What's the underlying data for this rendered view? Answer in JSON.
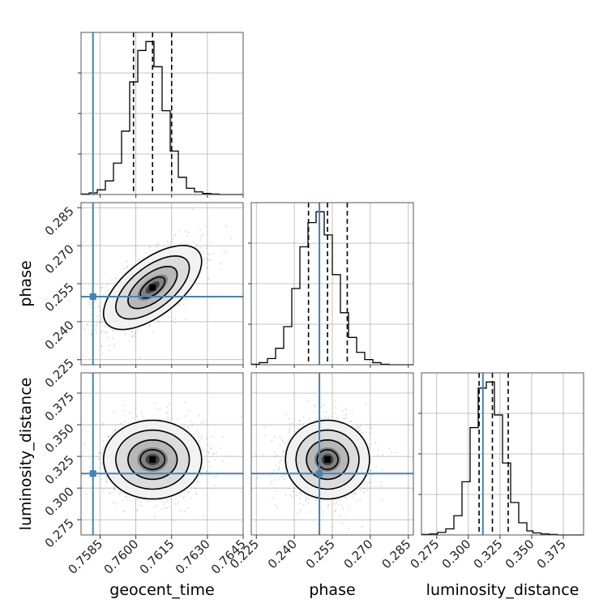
{
  "chart_data": {
    "type": "corner",
    "parameters": [
      "geocent_time",
      "phase",
      "luminosity_distance"
    ],
    "axis_labels": {
      "geocent_time": "geocent_time",
      "phase": "phase",
      "luminosity_distance": "luminosity_distance"
    },
    "ranges": {
      "geocent_time": [
        0.7577,
        0.7645
      ],
      "phase": [
        0.223,
        0.287
      ],
      "luminosity_distance": [
        0.263,
        0.391
      ]
    },
    "ticks": {
      "geocent_time": [
        "0.7585",
        "0.7600",
        "0.7615",
        "0.7630",
        "0.7645"
      ],
      "phase": [
        "0.225",
        "0.240",
        "0.255",
        "0.270",
        "0.285"
      ],
      "luminosity_distance": [
        "0.275",
        "0.300",
        "0.325",
        "0.350",
        "0.375"
      ]
    },
    "truths": {
      "geocent_time": 0.7582,
      "phase": 0.2499,
      "luminosity_distance": 0.3115
    },
    "truth_color": "#4682b4",
    "quantiles": {
      "geocent_time": [
        0.7599,
        0.7607,
        0.7615
      ],
      "phase": [
        0.2456,
        0.2531,
        0.2609
      ],
      "luminosity_distance": [
        0.3085,
        0.319,
        0.3315
      ]
    },
    "histograms": {
      "geocent_time": {
        "edges": [
          0.7577,
          0.75804,
          0.75838,
          0.75872,
          0.75906,
          0.7594,
          0.75974,
          0.76008,
          0.76042,
          0.76076,
          0.7611,
          0.76144,
          0.76178,
          0.76212,
          0.76246,
          0.7628,
          0.76314,
          0.76348,
          0.76382,
          0.76416,
          0.7645
        ],
        "counts": [
          1,
          3,
          9,
          26,
          60,
          121,
          215,
          275,
          292,
          244,
          160,
          83,
          33,
          12,
          5,
          2,
          1,
          0,
          0,
          0
        ]
      },
      "phase": {
        "edges": [
          0.223,
          0.2262,
          0.2294,
          0.2326,
          0.2358,
          0.239,
          0.2422,
          0.2454,
          0.2486,
          0.2518,
          0.255,
          0.2582,
          0.2614,
          0.2646,
          0.2678,
          0.271,
          0.2742,
          0.2774,
          0.2806,
          0.2838,
          0.287
        ],
        "counts": [
          1,
          4,
          12,
          32,
          74,
          148,
          229,
          276,
          297,
          252,
          175,
          101,
          53,
          24,
          10,
          4,
          1,
          0,
          0,
          0
        ]
      },
      "luminosity_distance": {
        "edges": [
          0.263,
          0.2694,
          0.2758,
          0.2822,
          0.2886,
          0.295,
          0.3014,
          0.3078,
          0.3142,
          0.3206,
          0.327,
          0.3334,
          0.3398,
          0.3462,
          0.351,
          0.3574,
          0.3638,
          0.3702,
          0.3766,
          0.383,
          0.391
        ],
        "counts": [
          1,
          2,
          5,
          12,
          38,
          105,
          212,
          290,
          302,
          237,
          142,
          64,
          24,
          8,
          4,
          2,
          1,
          0,
          0,
          0
        ]
      }
    },
    "pairs": [
      {
        "x": "geocent_time",
        "y": "phase",
        "mean": [
          0.7607,
          0.2535
        ],
        "std": [
          0.00098,
          0.0079
        ],
        "rho": 0.62
      },
      {
        "x": "geocent_time",
        "y": "luminosity_distance",
        "mean": [
          0.7607,
          0.3225
        ],
        "std": [
          0.00098,
          0.0148
        ],
        "rho": 0.0
      },
      {
        "x": "phase",
        "y": "luminosity_distance",
        "mean": [
          0.2531,
          0.3225
        ],
        "std": [
          0.0079,
          0.0148
        ],
        "rho": 0.0
      }
    ],
    "contour_levels_sigma": [
      0.5,
      1.0,
      1.5,
      2.0
    ],
    "grid": true
  }
}
